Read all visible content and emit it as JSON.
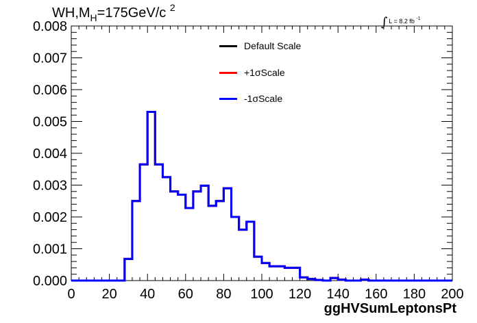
{
  "header": {
    "title_main": "WH,M",
    "title_sub": "H",
    "title_rest": "=175GeV/c",
    "title_sup": "2",
    "lumi_text": "L = 8.2 fb",
    "lumi_sup": "-1"
  },
  "legend": {
    "items": [
      {
        "label": "Default Scale",
        "color": "#000000"
      },
      {
        "label": "+1σScale",
        "color": "#ff0000"
      },
      {
        "label": "-1σScale",
        "color": "#0000ff"
      }
    ]
  },
  "chart_data": {
    "type": "line",
    "subtype": "step-histogram",
    "title": "WH,M_H=175GeV/c^2",
    "xlabel": "ggHVSumLeptonsPt",
    "ylabel": "",
    "xlim": [
      0,
      200
    ],
    "ylim": [
      0,
      0.008
    ],
    "xticks": [
      0,
      20,
      40,
      60,
      80,
      100,
      120,
      140,
      160,
      180,
      200
    ],
    "xtick_labels": [
      "0",
      "20",
      "40",
      "60",
      "80",
      "100",
      "120",
      "140",
      "160",
      "180",
      "200"
    ],
    "yticks": [
      0,
      0.001,
      0.002,
      0.003,
      0.004,
      0.005,
      0.006,
      0.007,
      0.008
    ],
    "ytick_labels": [
      "0.000",
      "0.001",
      "0.002",
      "0.003",
      "0.004",
      "0.005",
      "0.006",
      "0.007",
      "0.008"
    ],
    "grid": false,
    "legend_position": "top-center",
    "bin_edges": [
      0,
      4,
      8,
      12,
      16,
      20,
      24,
      28,
      32,
      36,
      40,
      44,
      48,
      52,
      56,
      60,
      64,
      68,
      72,
      76,
      80,
      84,
      88,
      92,
      96,
      100,
      104,
      108,
      112,
      116,
      120,
      124,
      128,
      132,
      136,
      140,
      144,
      148,
      152,
      156,
      160,
      164,
      168,
      172,
      176,
      180,
      184,
      188,
      192,
      196,
      200
    ],
    "series": [
      {
        "name": "Default Scale",
        "color": "#000000",
        "values": [
          0,
          0,
          0,
          0,
          0,
          0,
          0,
          0.00068,
          0.0025,
          0.00365,
          0.0053,
          0.00365,
          0.00325,
          0.0028,
          0.0027,
          0.00228,
          0.0028,
          0.00298,
          0.00235,
          0.0025,
          0.0029,
          0.002,
          0.0016,
          0.00185,
          0.00075,
          0.00055,
          0.00045,
          0.00045,
          0.0004,
          0.0004,
          0.0001,
          5e-05,
          2e-05,
          0,
          8e-05,
          3e-05,
          0,
          0,
          3e-05,
          0,
          0,
          0,
          0,
          0,
          0,
          0,
          0,
          0,
          0,
          0
        ]
      },
      {
        "name": "+1σScale",
        "color": "#ff0000",
        "values": [
          0,
          0,
          0,
          0,
          0,
          0,
          0,
          0.00068,
          0.0025,
          0.00365,
          0.0053,
          0.00365,
          0.00325,
          0.0028,
          0.0027,
          0.00228,
          0.0028,
          0.00298,
          0.00235,
          0.0025,
          0.0029,
          0.002,
          0.0016,
          0.00185,
          0.00075,
          0.00055,
          0.00045,
          0.00045,
          0.0004,
          0.0004,
          0.0001,
          5e-05,
          2e-05,
          0,
          8e-05,
          3e-05,
          0,
          0,
          3e-05,
          0,
          0,
          0,
          0,
          0,
          0,
          0,
          0,
          0,
          0,
          0
        ]
      },
      {
        "name": "-1σScale",
        "color": "#0000ff",
        "values": [
          0,
          0,
          0,
          0,
          0,
          0,
          0,
          0.00068,
          0.0025,
          0.00365,
          0.0053,
          0.00365,
          0.00325,
          0.0028,
          0.0027,
          0.00228,
          0.0028,
          0.00298,
          0.00235,
          0.0025,
          0.0029,
          0.002,
          0.0016,
          0.00185,
          0.00075,
          0.00055,
          0.00045,
          0.00045,
          0.0004,
          0.0004,
          0.0001,
          5e-05,
          2e-05,
          0,
          8e-05,
          3e-05,
          0,
          0,
          3e-05,
          0,
          0,
          0,
          0,
          0,
          0,
          0,
          0,
          0,
          0,
          0
        ]
      }
    ]
  }
}
